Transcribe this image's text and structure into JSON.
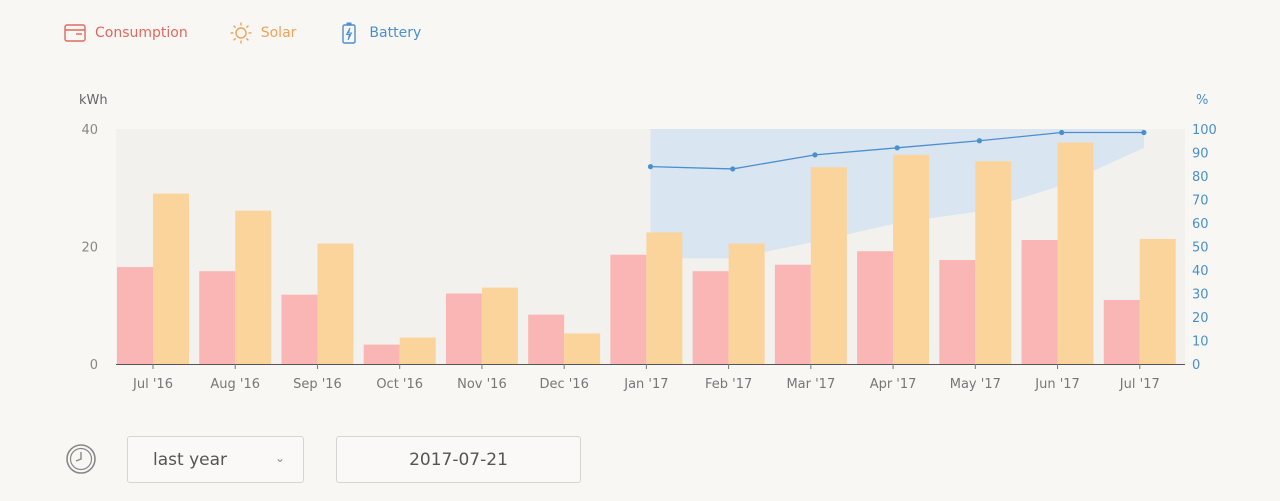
{
  "legend": {
    "consumption": "Consumption",
    "solar": "Solar",
    "battery": "Battery"
  },
  "colors": {
    "consumption": "#f9b6b5",
    "solar": "#fad49b",
    "battery_line": "#4a8fcf",
    "battery_area": "#d7e4ef"
  },
  "controls": {
    "range_value": "last year",
    "date_value": "2017-07-21"
  },
  "chart_data": {
    "type": "bar",
    "ylabel": "kWh",
    "y2label": "%",
    "ylim": [
      0,
      40
    ],
    "y2lim": [
      0,
      100
    ],
    "yticks": [
      "0",
      "20",
      "40"
    ],
    "y2ticks": [
      "0",
      "10",
      "20",
      "30",
      "40",
      "50",
      "60",
      "70",
      "80",
      "90",
      "100"
    ],
    "categories": [
      "Jul '16",
      "Aug '16",
      "Sep '16",
      "Oct '16",
      "Nov '16",
      "Dec '16",
      "Jan '17",
      "Feb '17",
      "Mar '17",
      "Apr '17",
      "May '17",
      "Jun '17",
      "Jul '17"
    ],
    "series": [
      {
        "key": "consumption",
        "values": [
          16.5,
          15.8,
          11.8,
          3.3,
          12.0,
          8.4,
          18.6,
          15.8,
          16.9,
          19.2,
          17.7,
          21.1,
          10.9
        ]
      },
      {
        "key": "solar",
        "values": [
          29.0,
          26.1,
          20.5,
          4.5,
          13.0,
          5.2,
          22.4,
          20.5,
          33.5,
          35.6,
          34.5,
          37.7,
          21.3
        ]
      }
    ],
    "battery": {
      "categories": [
        "Jan '17",
        "Feb '17",
        "Mar '17",
        "Apr '17",
        "May '17",
        "Jun '17",
        "Jul '17"
      ],
      "values": [
        84,
        83,
        89,
        92,
        95,
        98.5,
        98.5
      ],
      "range_low": [
        45,
        45,
        52,
        60,
        65,
        76,
        92
      ],
      "range_high": [
        100,
        100,
        100,
        100,
        100,
        100,
        100
      ]
    },
    "grid": false,
    "legend_position": "top-left"
  }
}
